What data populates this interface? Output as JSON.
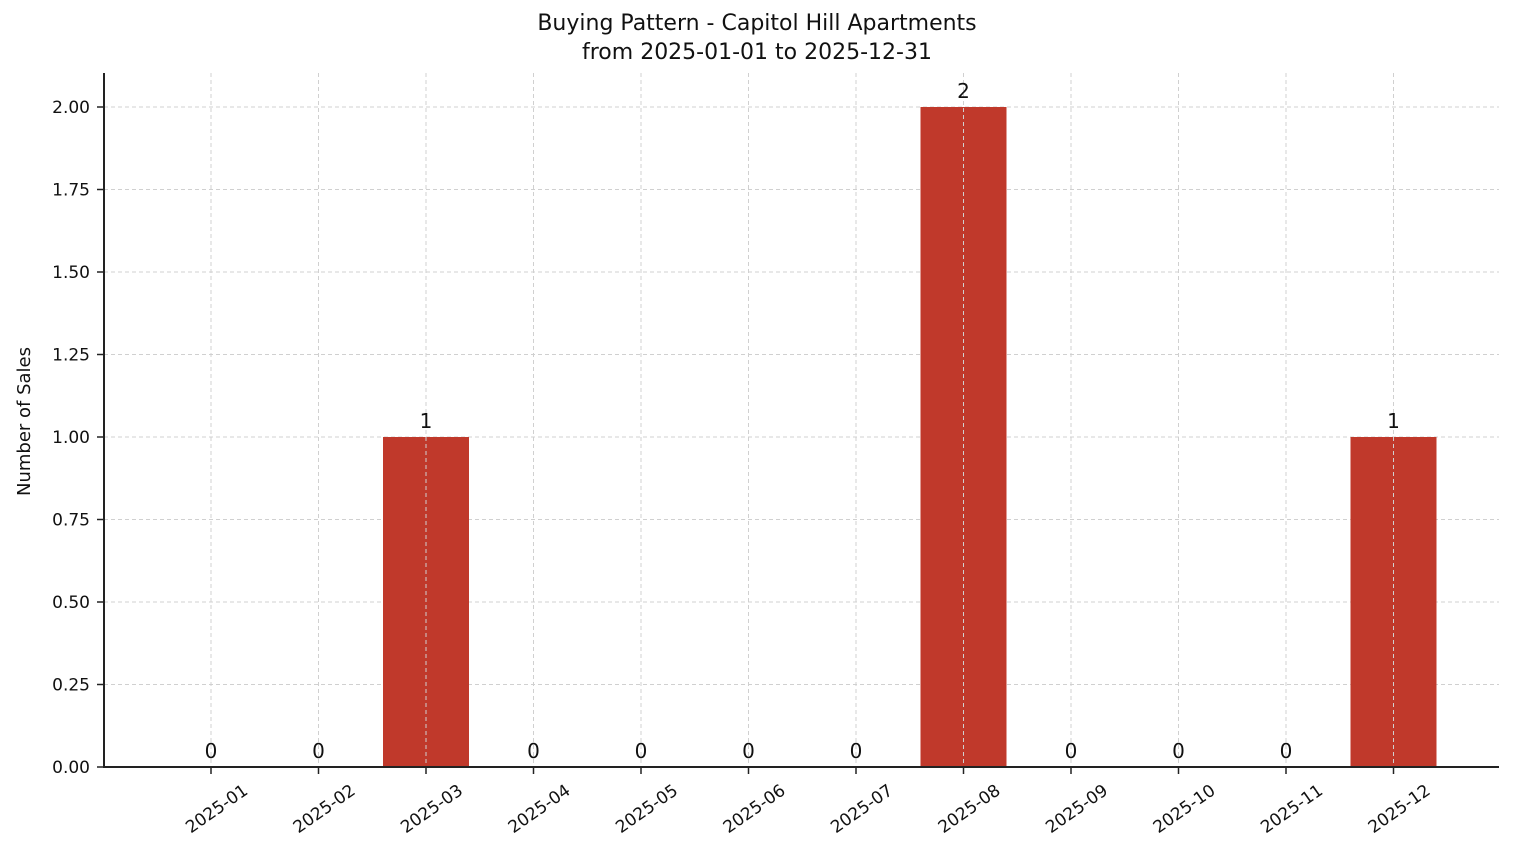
{
  "chart_data": {
    "type": "bar",
    "title": "Buying Pattern - Capitol Hill Apartments",
    "subtitle": "from 2025-01-01 to 2025-12-31",
    "xlabel": "",
    "ylabel": "Number of Sales",
    "categories": [
      "2025-01",
      "2025-02",
      "2025-03",
      "2025-04",
      "2025-05",
      "2025-06",
      "2025-07",
      "2025-08",
      "2025-09",
      "2025-10",
      "2025-11",
      "2025-12"
    ],
    "values": [
      0,
      0,
      1,
      0,
      0,
      0,
      0,
      2,
      0,
      0,
      0,
      1
    ],
    "data_labels": [
      "0",
      "0",
      "1",
      "0",
      "0",
      "0",
      "0",
      "2",
      "0",
      "0",
      "0",
      "1"
    ],
    "ylim": [
      0,
      2.1
    ],
    "yticks": [
      0,
      0.25,
      0.5,
      0.75,
      1.0,
      1.25,
      1.5,
      1.75,
      2.0
    ],
    "ytick_labels": [
      "0.00",
      "0.25",
      "0.50",
      "0.75",
      "1.00",
      "1.25",
      "1.50",
      "1.75",
      "2.00"
    ],
    "grid": true,
    "grid_style": "dashed",
    "legend": null,
    "bar_color": "#c0392b",
    "xtick_rotation": 35
  }
}
